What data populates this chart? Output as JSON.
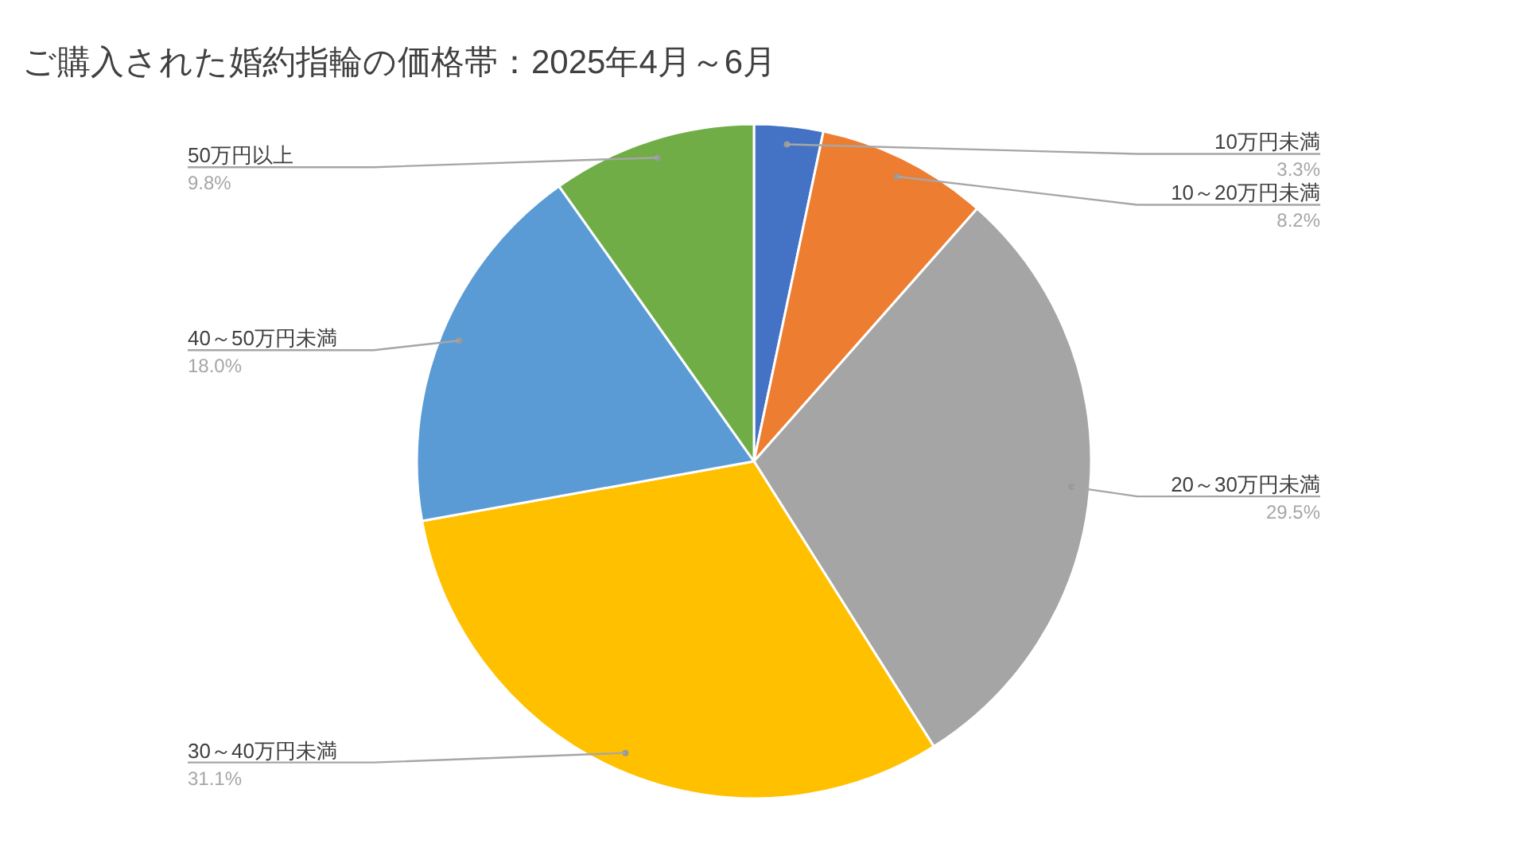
{
  "chart_data": {
    "type": "pie",
    "title": "ご購入された婚約指輪の価格帯：2025年4月～6月",
    "categories": [
      "10万円未満",
      "10～20万円未満",
      "20～30万円未満",
      "30～40万円未満",
      "40～50万円未満",
      "50万円以上"
    ],
    "values": [
      3.3,
      8.2,
      29.5,
      31.1,
      18.0,
      9.8
    ],
    "colors": [
      "#4472c4",
      "#ed7d31",
      "#a5a5a5",
      "#ffc000",
      "#5b9bd5",
      "#70ad47"
    ],
    "value_labels": [
      "3.3%",
      "8.2%",
      "29.5%",
      "31.1%",
      "18.0%",
      "9.8%"
    ]
  }
}
